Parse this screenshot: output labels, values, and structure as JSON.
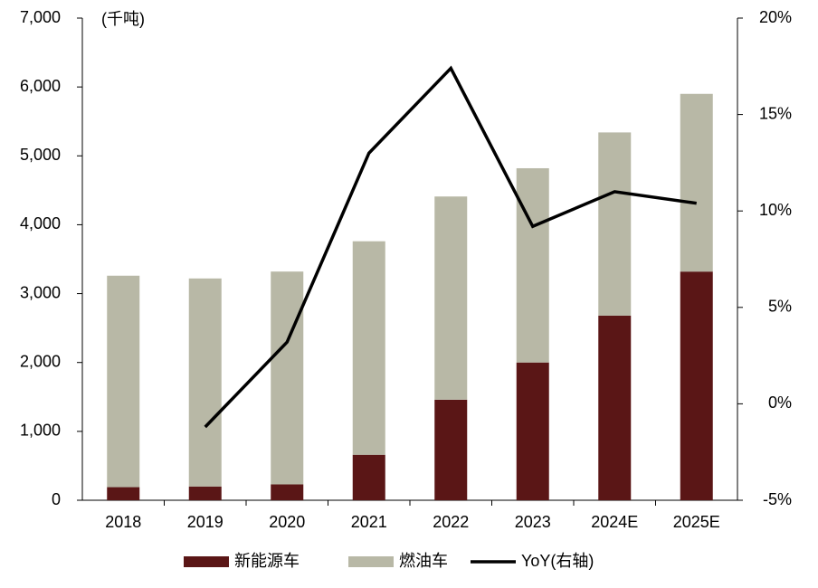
{
  "chart_data": {
    "type": "bar",
    "stacked": true,
    "unit_label": "(千吨)",
    "categories": [
      "2018",
      "2019",
      "2020",
      "2021",
      "2022",
      "2023",
      "2024E",
      "2025E"
    ],
    "series": [
      {
        "name": "新能源车",
        "color": "#5a1616",
        "values": [
          190,
          200,
          230,
          660,
          1460,
          2000,
          2680,
          3320
        ]
      },
      {
        "name": "燃油车",
        "color": "#b8b8a6",
        "values": [
          3070,
          3020,
          3090,
          3100,
          2950,
          2820,
          2660,
          2580
        ]
      },
      {
        "name": "YoY(右轴)",
        "type": "line",
        "axis": "y2",
        "color": "#000000",
        "values": [
          null,
          -1.2,
          3.2,
          13.0,
          17.4,
          9.2,
          11.0,
          10.4
        ]
      }
    ],
    "ylim": [
      0,
      7000
    ],
    "yticks": [
      {
        "value": 0,
        "label": "0"
      },
      {
        "value": 1000,
        "label": "1,000"
      },
      {
        "value": 2000,
        "label": "2,000"
      },
      {
        "value": 3000,
        "label": "3,000"
      },
      {
        "value": 4000,
        "label": "4,000"
      },
      {
        "value": 5000,
        "label": "5,000"
      },
      {
        "value": 6000,
        "label": "6,000"
      },
      {
        "value": 7000,
        "label": "7,000"
      }
    ],
    "y2lim": [
      -5,
      20
    ],
    "y2ticks": [
      {
        "value": -5,
        "label": "-5%"
      },
      {
        "value": 0,
        "label": "0%"
      },
      {
        "value": 5,
        "label": "5%"
      },
      {
        "value": 10,
        "label": "10%"
      },
      {
        "value": 15,
        "label": "15%"
      },
      {
        "value": 20,
        "label": "20%"
      }
    ],
    "legend": "bottom"
  }
}
